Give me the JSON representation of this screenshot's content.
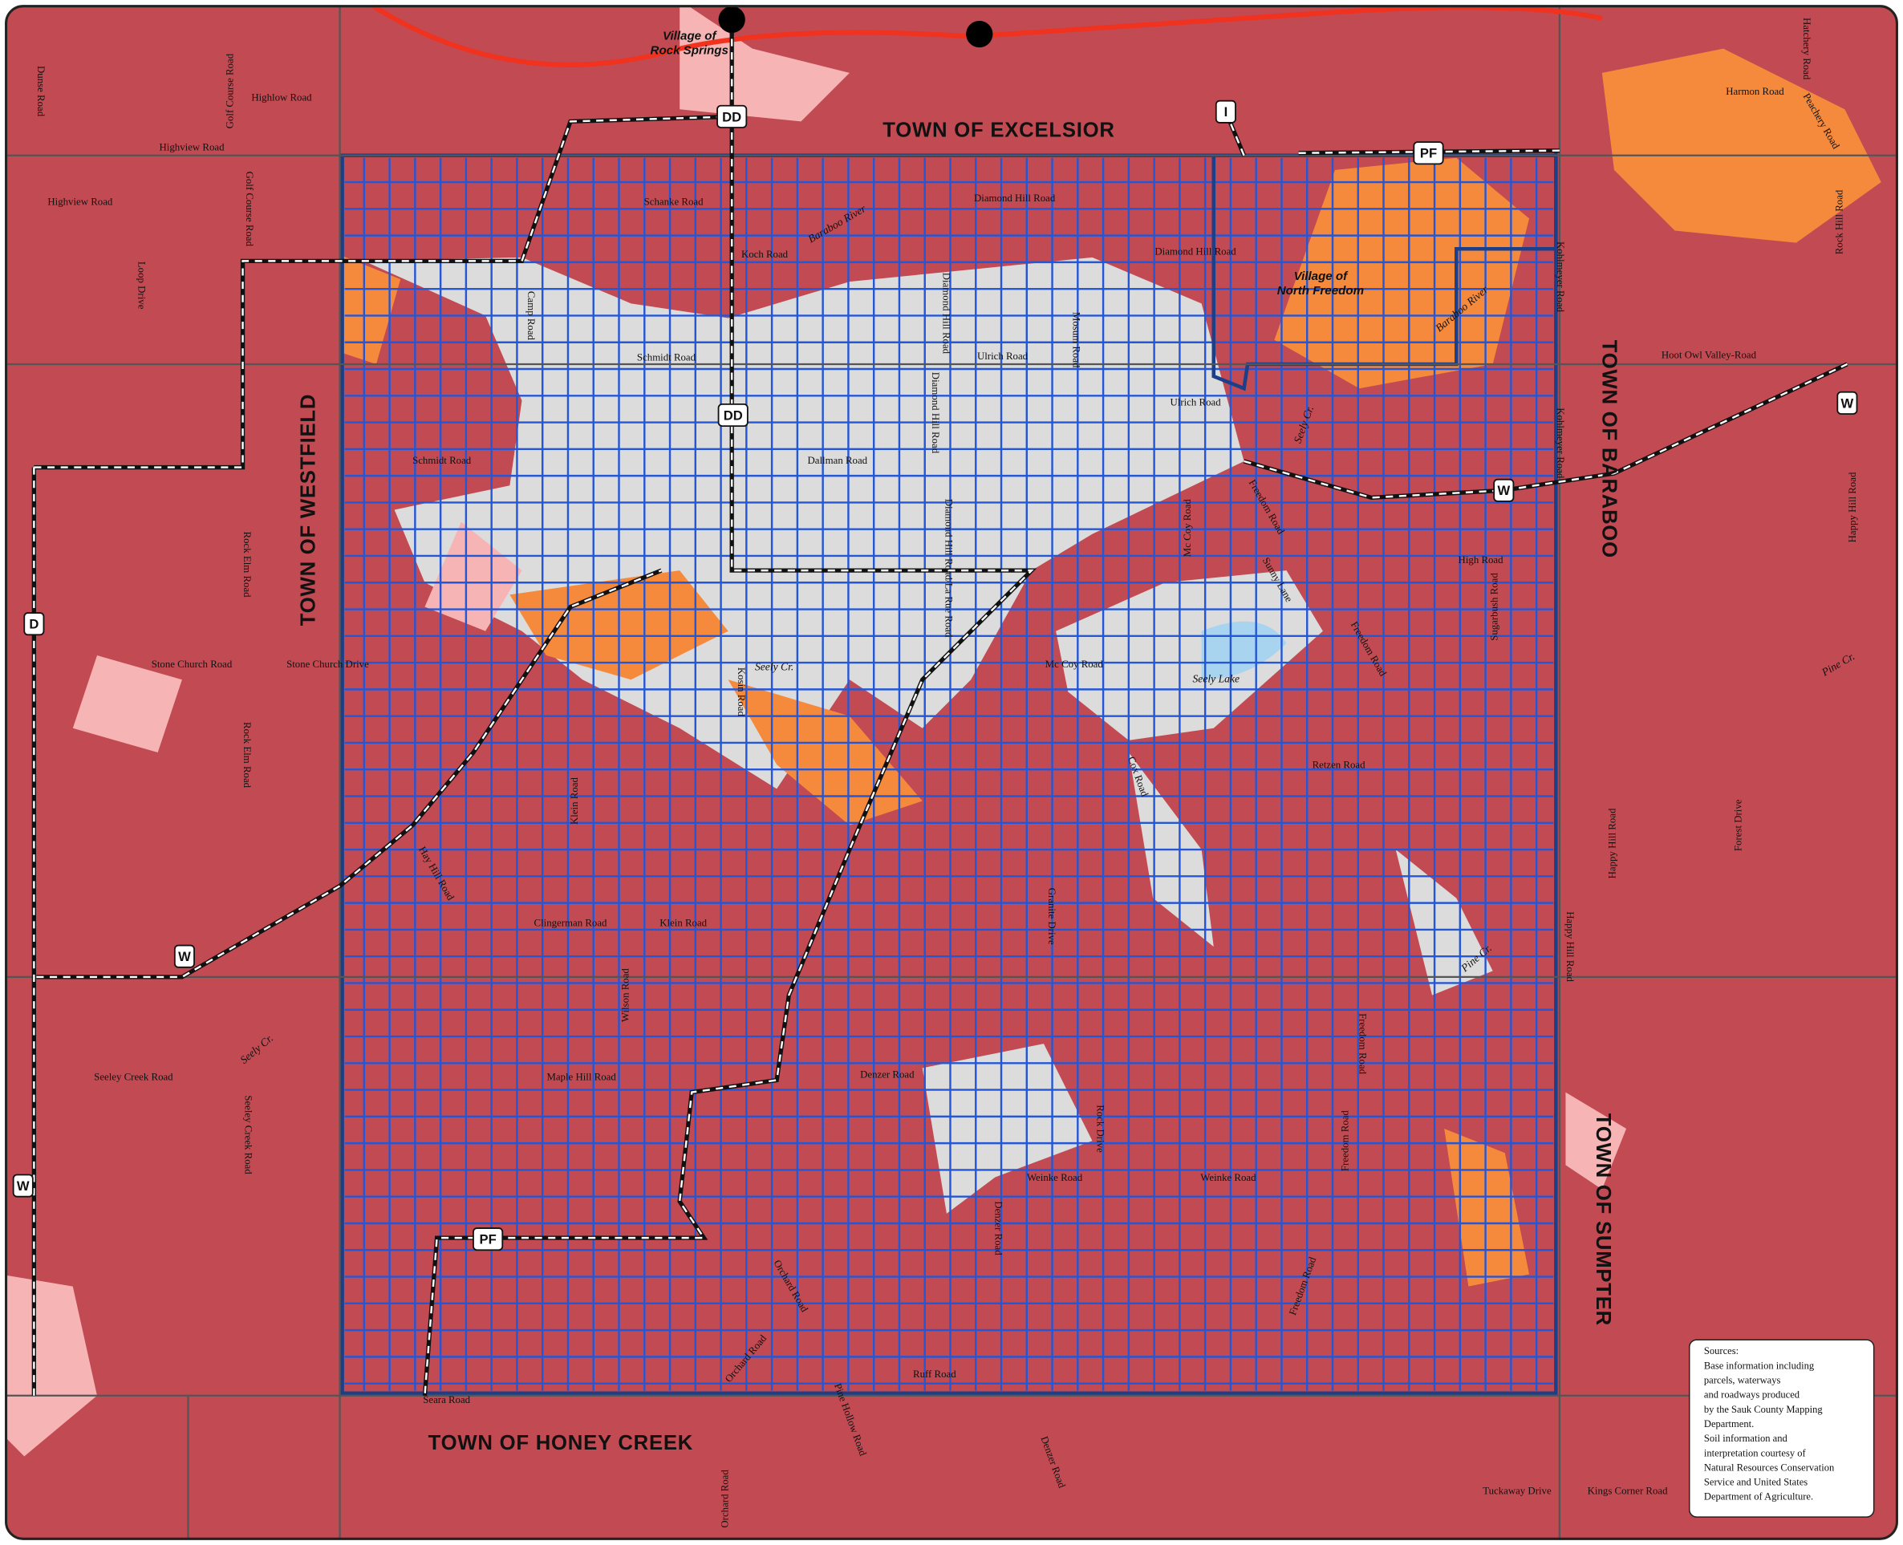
{
  "towns": [
    "TOWN OF EXCELSIOR",
    "TOWN OF WESTFIELD",
    "TOWN OF BARABOO",
    "TOWN OF SUMPTER",
    "TOWN OF HONEY CREEK"
  ],
  "villages": [
    [
      "Village of",
      "Rock Springs"
    ],
    [
      "Village of",
      "North Freedom"
    ]
  ],
  "shields": [
    "DD",
    "I",
    "PF",
    "DD",
    "W",
    "W",
    "D",
    "W",
    "W",
    "PF"
  ],
  "roads": [
    "Highlow Road",
    "Highview Road",
    "Highview Road",
    "Schanke Road",
    "Diamond Hill Road",
    "Koch Road",
    "Diamond Hill Road",
    "Schmidt Road",
    "Ulrich Road",
    "Ulrich Road",
    "Schmidt Road",
    "Dallman Road",
    "High Road",
    "Hoot Owl Valley-Road",
    "Harmon Road",
    "Stone Church Road",
    "Stone Church Drive",
    "Mc Coy Road",
    "Retzen Road",
    "Clingerman Road",
    "Klein Road",
    "Seeley Creek Road",
    "Maple Hill Road",
    "Denzer Road",
    "Weinke Road",
    "Weinke Road",
    "Ruff Road",
    "Tuckaway Drive",
    "Kings Corner Road",
    "Seara Road",
    "Dunse Road",
    "Golf Course Road",
    "Golf Course Road",
    "Loop Drive",
    "Camp Road",
    "Diamond Hill Road",
    "Diamond Hill Road",
    "Diamond Hill Road/La Rue Road",
    "Mosum Road",
    "Mc Coy Road",
    "Freedom Road",
    "Sunny Lane",
    "Sugarbush Road",
    "Freedom Road",
    "Rock Elm Road",
    "Rock Elm Road",
    "Kosin Road",
    "Klein Road",
    "Hay Hill Road",
    "Wilson Road",
    "Cox Road",
    "Granite Drive",
    "Freedom Road",
    "Freedom Road",
    "Freedom Road",
    "Rock Drive",
    "Denzer Road",
    "Orchard Road",
    "Orchard Road",
    "Pine Hollow Road",
    "Denzer Road",
    "Orchard Road",
    "Seeley Creek Road",
    "Happy Hill Road",
    "Happy Hill Road",
    "Happy Hill Road",
    "Forest Drive",
    "Kohlmeyer Road",
    "Kohlmeyer Road",
    "Rock Hill Road",
    "Hatchery Road",
    "Peachery Road"
  ],
  "streams": [
    "Baraboo River",
    "Baraboo River",
    "Seely Cr.",
    "Seely Lake",
    "Pine Cr.",
    "Pine Cr.",
    "Seely Cr.",
    "Seely Cr."
  ],
  "sources": [
    "Sources:",
    "Base information including",
    "parcels, waterways",
    "and roadways produced",
    "by the Sauk County Mapping",
    "Department.",
    "Soil information and",
    "interpretation courtesy of",
    "Natural Resources Conservation",
    "Service and United States",
    "Department of Agriculture."
  ]
}
